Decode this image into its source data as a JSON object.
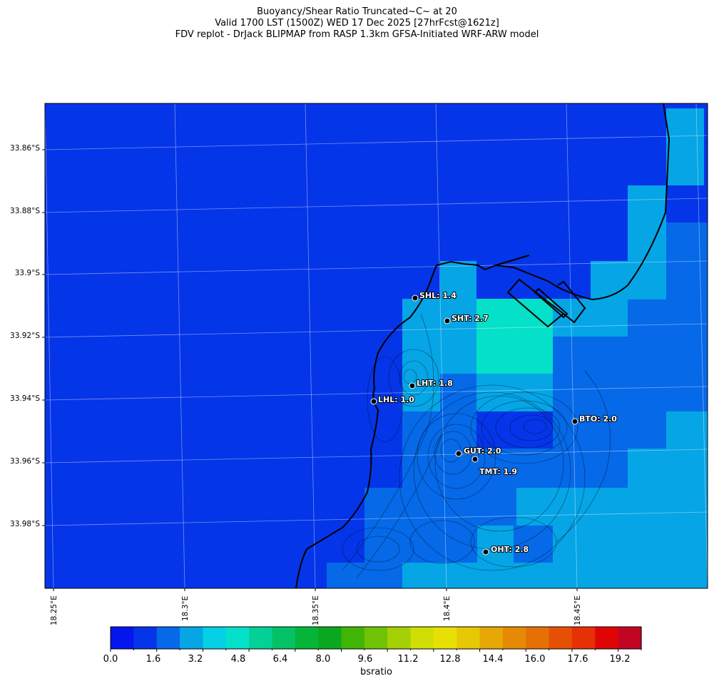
{
  "header": {
    "line1": "Buoyancy/Shear Ratio Truncated~C~    at 20",
    "line2": "Valid 1700 LST (1500Z) WED 17 Dec 2025 [27hrFcst@1621z]",
    "line3": "FDV replot - DrJack BLIPMAP from RASP 1.3km GFSA-Initiated WRF-ARW model"
  },
  "axes": {
    "lat_labels": [
      "33.86°S",
      "33.88°S",
      "33.9°S",
      "33.92°S",
      "33.94°S",
      "33.96°S",
      "33.98°S"
    ],
    "lon_labels": [
      "18.25°E",
      "18.3°E",
      "18.35°E",
      "18.4°E",
      "18.45°E"
    ]
  },
  "stations": [
    {
      "label": "SHL: 1.4",
      "value": 1.4
    },
    {
      "label": "SHT: 2.7",
      "value": 2.7
    },
    {
      "label": "LHT: 1.8",
      "value": 1.8
    },
    {
      "label": "LHL: 1.0",
      "value": 1.0
    },
    {
      "label": "BTO: 2.0",
      "value": 2.0
    },
    {
      "label": "GUT: 2.0",
      "value": 2.0
    },
    {
      "label": "TMT: 1.9",
      "value": 1.9
    },
    {
      "label": "OHT: 2.8",
      "value": 2.8
    }
  ],
  "colorbar": {
    "label": "bsratio",
    "tick_labels": [
      "0.0",
      "1.6",
      "3.2",
      "4.8",
      "6.4",
      "8.0",
      "9.6",
      "11.2",
      "12.8",
      "14.4",
      "16.0",
      "17.6",
      "19.2"
    ],
    "min": 0,
    "max": 20,
    "colors": [
      "#0515ed",
      "#0535e8",
      "#0569e8",
      "#05a5e6",
      "#05d0e6",
      "#05e0c8",
      "#05d095",
      "#05c165",
      "#05b53a",
      "#0aa820",
      "#40b505",
      "#70c205",
      "#a5d005",
      "#d0de05",
      "#e6e005",
      "#e6c805",
      "#e6a805",
      "#e68a05",
      "#e67005",
      "#e65005",
      "#e63005",
      "#e00505",
      "#c20525"
    ]
  },
  "colors": {
    "field_deep": "#0535e8",
    "field_mid": "#0569e8",
    "field_light": "#05a5e6",
    "field_cyan": "#05e0c8"
  }
}
